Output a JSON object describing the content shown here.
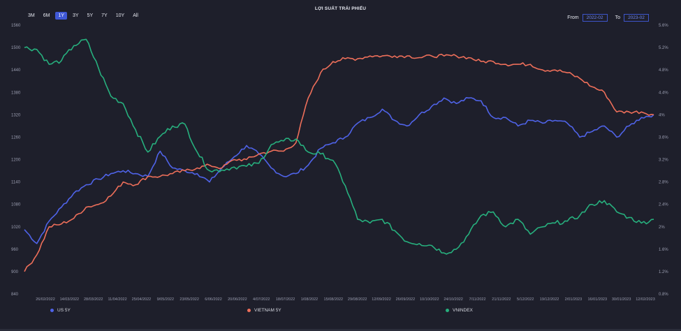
{
  "toolbar": {
    "ranges": [
      "3M",
      "6M",
      "1Y",
      "3Y",
      "5Y",
      "7Y",
      "10Y",
      "All"
    ],
    "active_range": "1Y"
  },
  "daterange": {
    "from_label": "From",
    "from_value": "2022-02",
    "to_label": "To",
    "to_value": "2023-02"
  },
  "colors": {
    "us5y": "#4f63e8",
    "vn5y": "#ee6f5a",
    "vnindex": "#27b07e",
    "background": "#1e1f2b",
    "accent": "#3f58d6"
  },
  "chart_data": {
    "type": "line",
    "title": "LỢI SUẤT TRÁI PHIẾU",
    "x_ticks": [
      "26/02/2022",
      "14/03/2022",
      "28/03/2022",
      "11/04/2022",
      "25/04/2022",
      "9/05/2022",
      "23/05/2022",
      "6/06/2022",
      "20/06/2022",
      "4/07/2022",
      "18/07/2022",
      "1/08/2022",
      "15/08/2022",
      "29/08/2022",
      "12/09/2022",
      "26/09/2022",
      "10/10/2022",
      "24/10/2022",
      "7/11/2022",
      "21/11/2022",
      "5/12/2022",
      "19/12/2022",
      "2/01/2023",
      "16/01/2023",
      "30/01/2023",
      "12/02/2023"
    ],
    "left_axis": {
      "ticks": [
        "840",
        "900",
        "960",
        "1020",
        "1080",
        "1140",
        "1200",
        "1260",
        "1320",
        "1380",
        "1440",
        "1500",
        "1560"
      ],
      "ylim": [
        840,
        1560
      ]
    },
    "right_axis": {
      "ticks": [
        "0.8%",
        "1.2%",
        "1.6%",
        "2%",
        "2.4%",
        "2.8%",
        "3.2%",
        "3.6%",
        "4%",
        "4.4%",
        "4.8%",
        "5.2%",
        "5.6%"
      ],
      "ylim": [
        0.8,
        5.6
      ]
    },
    "legend_position": "bottom",
    "grid": false,
    "series": [
      {
        "name": "US 5Y",
        "axis": "right",
        "color": "#4f63e8",
        "values": [
          1.95,
          1.7,
          2.1,
          2.35,
          2.6,
          2.75,
          2.85,
          2.95,
          3.0,
          2.95,
          2.9,
          3.35,
          3.05,
          3.0,
          2.95,
          2.8,
          3.05,
          3.25,
          3.45,
          3.3,
          3.05,
          2.9,
          2.95,
          3.1,
          3.4,
          3.5,
          3.6,
          3.85,
          3.95,
          4.1,
          3.9,
          3.8,
          4.0,
          4.15,
          4.3,
          4.2,
          4.3,
          4.25,
          3.95,
          3.95,
          3.8,
          3.9,
          3.85,
          3.9,
          3.85,
          3.6,
          3.7,
          3.8,
          3.6,
          3.8,
          3.95,
          4.0
        ]
      },
      {
        "name": "VIETNAM 5Y",
        "axis": "right",
        "color": "#ee6f5a",
        "values": [
          1.2,
          1.5,
          2.0,
          2.05,
          2.15,
          2.35,
          2.4,
          2.55,
          2.8,
          2.75,
          2.9,
          2.9,
          2.95,
          3.0,
          3.05,
          3.1,
          3.05,
          3.2,
          3.2,
          3.3,
          3.35,
          3.35,
          3.5,
          4.3,
          4.75,
          4.95,
          5.0,
          5.0,
          5.05,
          5.05,
          5.05,
          5.05,
          5.02,
          5.05,
          5.05,
          5.05,
          5.02,
          4.95,
          4.95,
          4.9,
          4.9,
          4.9,
          4.8,
          4.8,
          4.75,
          4.65,
          4.5,
          4.4,
          4.05,
          4.05,
          4.05,
          4.0
        ]
      },
      {
        "name": "VNINDEX",
        "axis": "left",
        "color": "#27b07e",
        "values": [
          1500,
          1495,
          1455,
          1465,
          1505,
          1522,
          1445,
          1370,
          1350,
          1280,
          1220,
          1262,
          1290,
          1295,
          1220,
          1170,
          1172,
          1180,
          1182,
          1190,
          1240,
          1250,
          1255,
          1220,
          1215,
          1198,
          1130,
          1040,
          1030,
          1040,
          1010,
          980,
          975,
          970,
          950,
          960,
          1000,
          1050,
          1060,
          1020,
          1040,
          1000,
          1020,
          1030,
          1035,
          1050,
          1080,
          1090,
          1060,
          1045,
          1030,
          1040
        ]
      }
    ],
    "legend": [
      "US 5Y",
      "VIETNAM 5Y",
      "VNINDEX"
    ]
  }
}
